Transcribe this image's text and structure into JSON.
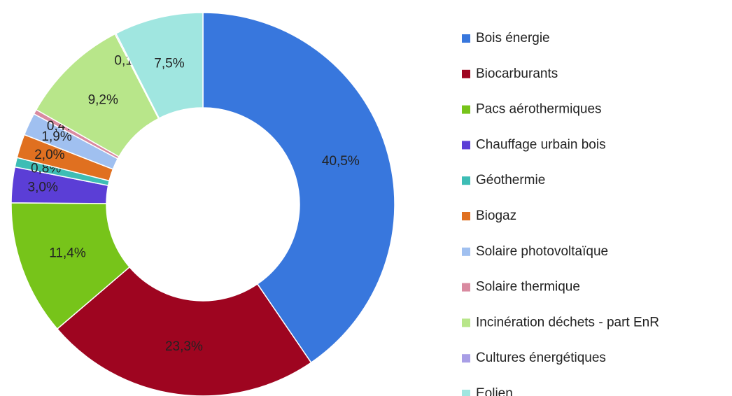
{
  "chart_data": {
    "type": "donut",
    "categories": [
      "Bois énergie",
      "Biocarburants",
      "Pacs aérothermiques",
      "Chauffage urbain bois",
      "Géothermie",
      "Biogaz",
      "Solaire photovoltaïque",
      "Solaire thermique",
      "Incinération déchets - part EnR",
      "Cultures énergétiques",
      "Eolien"
    ],
    "values": [
      40.5,
      23.3,
      11.4,
      3.0,
      0.8,
      2.0,
      1.9,
      0.4,
      9.2,
      0.1,
      7.5
    ],
    "value_labels": [
      "40,5%",
      "23,3%",
      "11,4%",
      "3,0%",
      "0,8%",
      "2,0%",
      "1,9%",
      "0,4%",
      "9,2%",
      "0,1%",
      "7,5%"
    ],
    "colors": [
      "#3877dd",
      "#9e0520",
      "#77c41a",
      "#5b3ed6",
      "#3dbdb5",
      "#e07020",
      "#a0c0f0",
      "#d98aa0",
      "#b8e68a",
      "#a89ee6",
      "#a0e6e0"
    ],
    "legend": "right"
  }
}
